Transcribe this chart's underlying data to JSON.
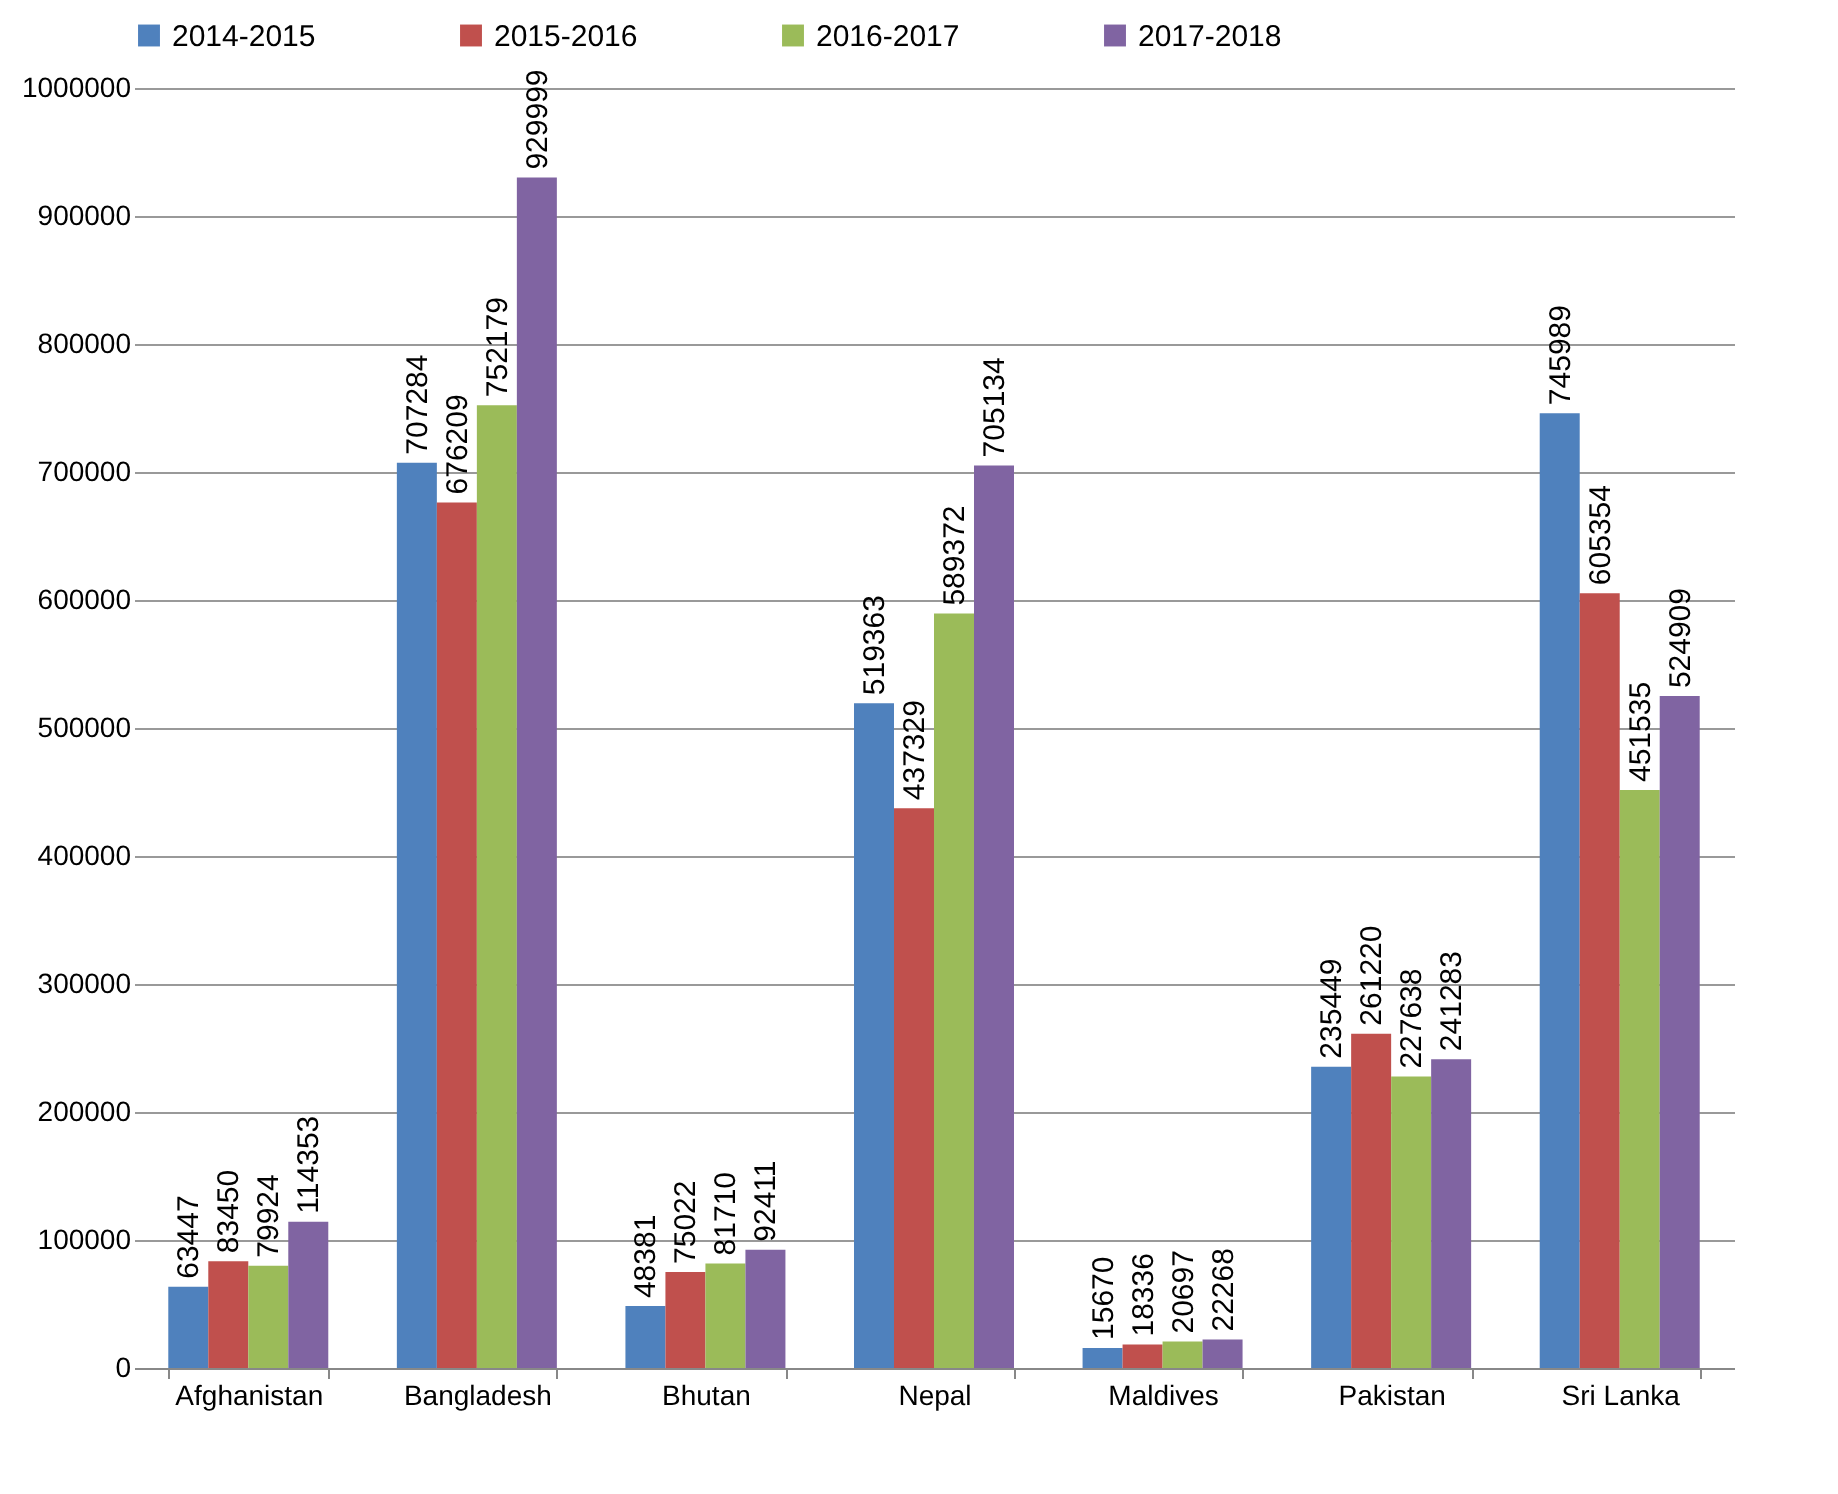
{
  "chart_data": {
    "type": "bar",
    "categories": [
      "Afghanistan",
      "Bangladesh",
      "Bhutan",
      "Nepal",
      "Maldives",
      "Pakistan",
      "Sri Lanka"
    ],
    "series": [
      {
        "name": "2014-2015",
        "color": "#4f81bd",
        "values": [
          63447,
          707284,
          48381,
          519363,
          15670,
          235449,
          745989
        ]
      },
      {
        "name": "2015-2016",
        "color": "#c0504d",
        "values": [
          83450,
          676209,
          75022,
          437329,
          18336,
          261220,
          605354
        ]
      },
      {
        "name": "2016-2017",
        "color": "#9bbb59",
        "values": [
          79924,
          752179,
          81710,
          589372,
          20697,
          227638,
          451535
        ]
      },
      {
        "name": "2017-2018",
        "color": "#8064a2",
        "values": [
          114353,
          929999,
          92411,
          705134,
          22268,
          241283,
          524909
        ]
      }
    ],
    "ylim": [
      0,
      1000000
    ],
    "yticks": [
      0,
      100000,
      200000,
      300000,
      400000,
      500000,
      600000,
      700000,
      800000,
      900000,
      1000000
    ],
    "grid": "y",
    "legend": "top",
    "data_labels": true
  }
}
